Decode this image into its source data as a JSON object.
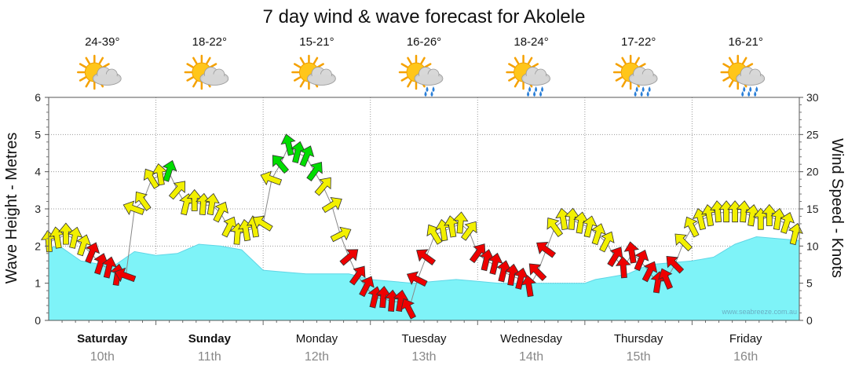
{
  "colors": {
    "wave_fill": "#7ef3f8",
    "wave_stroke": "#5fd6e6",
    "calm": "#ee0000",
    "moderate": "#f2f000",
    "fresh": "#00dd00",
    "grid": "#999999"
  },
  "chart_data": {
    "type": "area",
    "title": "7 day wind & wave forecast for Akolele",
    "y_left_label": "Wave Height - Metres",
    "y_right_label": "Wind Speed - Knots",
    "y_left_ticks": [
      "0",
      "1",
      "2",
      "3",
      "4",
      "5",
      "6"
    ],
    "y_right_ticks": [
      "0",
      "5",
      "10",
      "15",
      "20",
      "25",
      "30"
    ],
    "y_left_range": [
      0,
      6
    ],
    "y_right_range": [
      0,
      30
    ],
    "x_range": [
      0,
      7
    ],
    "grid": true,
    "days": [
      {
        "name": "Saturday",
        "date": "10th",
        "temp": "24-39°",
        "icon": "partly-cloudy-icon",
        "bold": true
      },
      {
        "name": "Sunday",
        "date": "11th",
        "temp": "18-22°",
        "icon": "partly-cloudy-icon",
        "bold": true
      },
      {
        "name": "Monday",
        "date": "12th",
        "temp": "15-21°",
        "icon": "partly-cloudy-icon",
        "bold": false
      },
      {
        "name": "Tuesday",
        "date": "13th",
        "temp": "16-26°",
        "icon": "sun-cloud-light-rain-icon",
        "bold": false
      },
      {
        "name": "Wednesday",
        "date": "14th",
        "temp": "18-24°",
        "icon": "sun-cloud-rain-icon",
        "bold": false
      },
      {
        "name": "Thursday",
        "date": "15th",
        "temp": "17-22°",
        "icon": "sun-cloud-rain-icon",
        "bold": false
      },
      {
        "name": "Friday",
        "date": "16th",
        "temp": "16-21°",
        "icon": "sun-cloud-rain-icon",
        "bold": false
      }
    ],
    "wave_height": {
      "name": "Wave Height",
      "x": [
        0,
        0.1,
        0.3,
        0.6,
        0.8,
        1.0,
        1.2,
        1.4,
        1.6,
        1.8,
        2.0,
        2.2,
        2.4,
        2.6,
        2.8,
        3.0,
        3.2,
        3.4,
        3.6,
        3.8,
        4.0,
        4.2,
        4.4,
        4.6,
        4.8,
        5.0,
        5.1,
        5.2,
        5.3,
        5.4,
        5.6,
        5.8,
        6.0,
        6.2,
        6.4,
        6.6,
        6.8,
        7.0
      ],
      "y": [
        1.95,
        2.0,
        1.6,
        1.45,
        1.85,
        1.75,
        1.8,
        2.05,
        2.0,
        1.9,
        1.35,
        1.3,
        1.25,
        1.25,
        1.25,
        1.1,
        1.05,
        1.0,
        1.05,
        1.1,
        1.05,
        1.0,
        1.0,
        1.0,
        1.0,
        1.0,
        1.1,
        1.15,
        1.2,
        1.25,
        1.5,
        1.55,
        1.6,
        1.7,
        2.05,
        2.25,
        2.2,
        2.15
      ]
    },
    "wind": {
      "name": "Wind Speed",
      "x": [
        0.0,
        0.08,
        0.16,
        0.24,
        0.32,
        0.4,
        0.48,
        0.56,
        0.64,
        0.72,
        0.8,
        0.88,
        0.96,
        1.04,
        1.12,
        1.2,
        1.28,
        1.36,
        1.44,
        1.52,
        1.6,
        1.68,
        1.76,
        1.84,
        1.92,
        2.0,
        2.08,
        2.16,
        2.24,
        2.32,
        2.4,
        2.48,
        2.56,
        2.64,
        2.72,
        2.8,
        2.88,
        2.96,
        3.04,
        3.12,
        3.2,
        3.28,
        3.36,
        3.44,
        3.52,
        3.6,
        3.68,
        3.76,
        3.84,
        3.92,
        4.0,
        4.08,
        4.16,
        4.24,
        4.32,
        4.4,
        4.48,
        4.56,
        4.64,
        4.72,
        4.8,
        4.88,
        4.96,
        5.04,
        5.12,
        5.2,
        5.28,
        5.36,
        5.44,
        5.52,
        5.6,
        5.68,
        5.76,
        5.84,
        5.92,
        6.0,
        6.08,
        6.16,
        6.24,
        6.32,
        6.4,
        6.48,
        6.56,
        6.64,
        6.72,
        6.8,
        6.88,
        6.96
      ],
      "y": [
        10.5,
        11.0,
        11.5,
        11.0,
        10.0,
        9.0,
        7.5,
        7.0,
        6.0,
        6.0,
        15.0,
        16.0,
        19.0,
        19.5,
        20.0,
        17.5,
        15.5,
        16.0,
        15.5,
        15.5,
        14.5,
        12.5,
        11.5,
        12.0,
        12.5,
        13.0,
        19.0,
        21.0,
        23.5,
        22.5,
        22.0,
        20.0,
        18.0,
        15.5,
        11.5,
        8.5,
        6.0,
        4.5,
        3.0,
        3.0,
        2.5,
        2.5,
        1.5,
        5.5,
        8.5,
        11.5,
        12.0,
        12.5,
        13.0,
        12.0,
        9.0,
        8.0,
        7.5,
        6.5,
        6.0,
        5.5,
        4.5,
        6.5,
        9.5,
        12.5,
        13.5,
        13.5,
        13.0,
        12.5,
        11.5,
        10.5,
        8.5,
        7.0,
        9.0,
        8.0,
        6.5,
        5.0,
        5.5,
        7.5,
        10.5,
        12.5,
        13.5,
        14.0,
        14.5,
        14.5,
        14.5,
        14.5,
        14.0,
        13.5,
        14.0,
        13.5,
        13.0,
        11.5
      ]
    }
  },
  "credit": "www.seabreeze.com.au"
}
